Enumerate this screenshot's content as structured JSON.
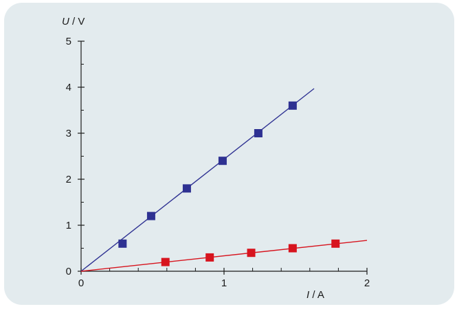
{
  "chart_data": {
    "type": "scatter",
    "ylabel_var": "U",
    "ylabel_unit": " / V",
    "xlabel_var": "I",
    "xlabel_unit": " / A",
    "xlim": [
      0,
      2
    ],
    "ylim": [
      0,
      5
    ],
    "x_ticks": [
      0,
      1,
      2
    ],
    "y_ticks": [
      0,
      1,
      2,
      3,
      4,
      5
    ],
    "grid": false,
    "series": [
      {
        "color": "#2e3192",
        "points": [
          [
            0.29,
            0.6
          ],
          [
            0.49,
            1.2
          ],
          [
            0.74,
            1.8
          ],
          [
            0.99,
            2.4
          ],
          [
            1.24,
            3.0
          ],
          [
            1.48,
            3.6
          ]
        ],
        "fit_line": [
          [
            0,
            0
          ],
          [
            1.63,
            3.97
          ]
        ]
      },
      {
        "color": "#d7141e",
        "points": [
          [
            0.59,
            0.2
          ],
          [
            0.9,
            0.3
          ],
          [
            1.19,
            0.4
          ],
          [
            1.48,
            0.5
          ],
          [
            1.78,
            0.6
          ]
        ],
        "fit_line": [
          [
            0,
            0
          ],
          [
            2.0,
            0.67
          ]
        ]
      }
    ]
  }
}
